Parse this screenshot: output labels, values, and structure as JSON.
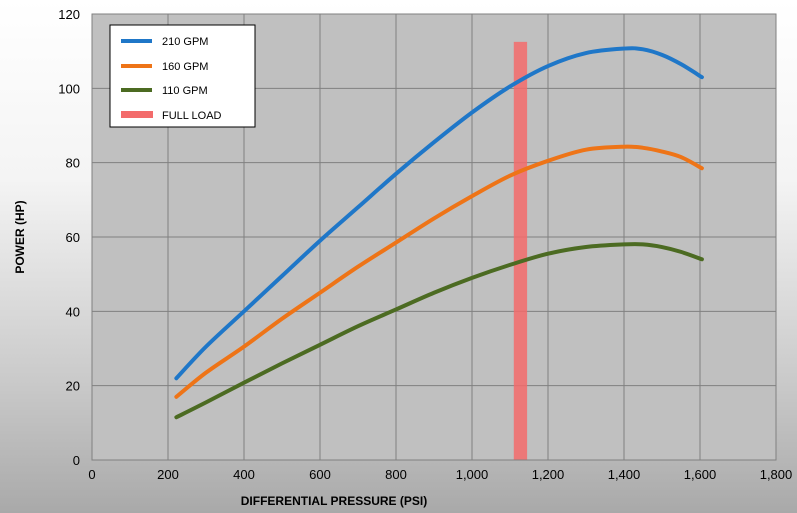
{
  "chart_data": {
    "type": "line",
    "xlabel": "DIFFERENTIAL PRESSURE  (PSI)",
    "ylabel": "POWER  (HP)",
    "xlim": [
      0,
      1800
    ],
    "ylim": [
      0,
      120
    ],
    "x_ticks": [
      0,
      200,
      400,
      600,
      800,
      1000,
      1200,
      1400,
      1600,
      1800
    ],
    "x_tick_labels": [
      "0",
      "200",
      "400",
      "600",
      "800",
      "1,000",
      "1,200",
      "1,400",
      "1,600",
      "1,800"
    ],
    "y_ticks": [
      0,
      20,
      40,
      60,
      80,
      100,
      120
    ],
    "y_tick_labels": [
      "0",
      "20",
      "40",
      "60",
      "80",
      "100",
      "120"
    ],
    "grid": true,
    "legend_position": "top-left",
    "series": [
      {
        "name": "210 GPM",
        "color": "#1f77c8",
        "x": [
          222,
          300,
          400,
          500,
          600,
          700,
          800,
          900,
          1000,
          1100,
          1200,
          1300,
          1400,
          1450,
          1500,
          1550,
          1605
        ],
        "y": [
          22,
          30.5,
          40,
          49.5,
          59,
          68,
          77,
          85.5,
          93.5,
          100.5,
          106,
          109.5,
          110.7,
          110.5,
          109,
          106.5,
          103
        ]
      },
      {
        "name": "160 GPM",
        "color": "#ee7417",
        "x": [
          222,
          300,
          400,
          500,
          600,
          700,
          800,
          900,
          1000,
          1100,
          1200,
          1300,
          1400,
          1450,
          1500,
          1550,
          1605
        ],
        "y": [
          17,
          23.5,
          30.5,
          38,
          45,
          52,
          58.5,
          65,
          71,
          76.5,
          80.5,
          83.5,
          84.3,
          84,
          83,
          81.5,
          78.5
        ]
      },
      {
        "name": "110 GPM",
        "color": "#4c6b22",
        "x": [
          222,
          300,
          400,
          500,
          600,
          700,
          800,
          900,
          1000,
          1100,
          1200,
          1300,
          1400,
          1450,
          1500,
          1550,
          1605
        ],
        "y": [
          11.5,
          15.5,
          20.8,
          26,
          31,
          36,
          40.5,
          45,
          49,
          52.5,
          55.5,
          57.3,
          58,
          58,
          57.3,
          56,
          54
        ]
      }
    ],
    "full_load": {
      "name": "FULL LOAD",
      "color": "#f36b6b",
      "x_range": [
        1110,
        1145
      ],
      "y_top": 112.5
    }
  }
}
